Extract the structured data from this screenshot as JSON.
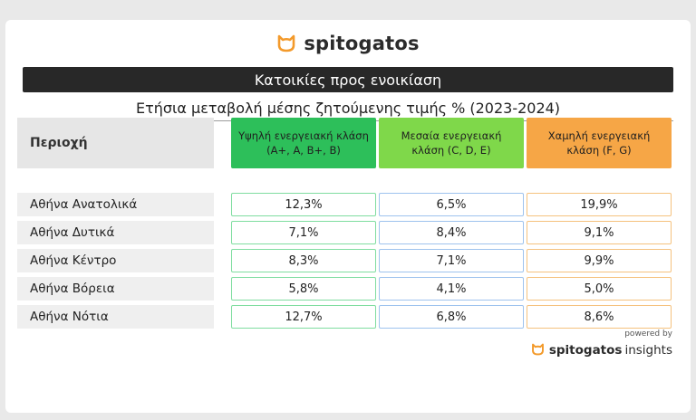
{
  "brand": {
    "name": "spitogatos",
    "accent": "#f39a2b"
  },
  "banner": "Κατοικίες προς ενοικίαση",
  "subtitle": "Ετήσια μεταβολή μέσης ζητούμενης τιμής % (2023-2024)",
  "table": {
    "region_header": "Περιοχή",
    "columns": [
      {
        "line1": "Υψηλή ενεργειακή κλάση",
        "line2": "(A+, A, B+, B)",
        "color": "#2dbf5a",
        "border": "#7fdda0"
      },
      {
        "line1": "Μεσαία ενεργειακή",
        "line2": "κλάση (C, D, E)",
        "color": "#7fd84a",
        "border": "#9ec3ee"
      },
      {
        "line1": "Χαμηλή ενεργειακή",
        "line2": "κλάση (F, G)",
        "color": "#f6a646",
        "border": "#f5c27e"
      }
    ]
  },
  "chart_data": {
    "type": "table",
    "title": "Ετήσια μεταβολή μέσης ζητούμενης τιμής % (2023-2024)",
    "row_header": "Περιοχή",
    "categories": [
      "Αθήνα Ανατολικά",
      "Αθήνα Δυτικά",
      "Αθήνα Κέντρο",
      "Αθήνα Βόρεια",
      "Αθήνα Νότια"
    ],
    "series": [
      {
        "name": "Υψηλή ενεργειακή κλάση (A+, A, B+, B)",
        "values": [
          12.3,
          7.1,
          8.3,
          5.8,
          12.7
        ],
        "labels": [
          "12,3%",
          "7,1%",
          "8,3%",
          "5,8%",
          "12,7%"
        ]
      },
      {
        "name": "Μεσαία ενεργειακή κλάση (C, D, E)",
        "values": [
          6.5,
          8.4,
          7.1,
          4.1,
          6.8
        ],
        "labels": [
          "6,5%",
          "8,4%",
          "7,1%",
          "4,1%",
          "6,8%"
        ]
      },
      {
        "name": "Χαμηλή ενεργειακή κλάση (F, G)",
        "values": [
          19.9,
          9.1,
          9.9,
          5.0,
          8.6
        ],
        "labels": [
          "19,9%",
          "9,1%",
          "9,9%",
          "5,0%",
          "8,6%"
        ]
      }
    ]
  },
  "footer": {
    "powered_by": "powered by",
    "brand_bold": "spitogatos",
    "brand_light": "insights"
  }
}
